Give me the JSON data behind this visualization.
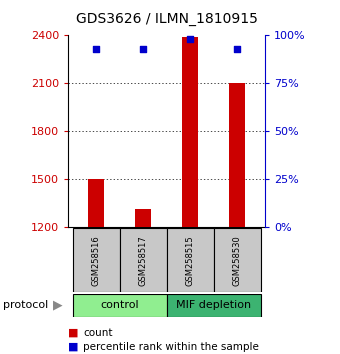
{
  "title": "GDS3626 / ILMN_1810915",
  "samples": [
    "GSM258516",
    "GSM258517",
    "GSM258515",
    "GSM258530"
  ],
  "counts": [
    1500,
    1310,
    2390,
    2100
  ],
  "percentile_ranks": [
    93,
    93,
    98,
    93
  ],
  "baseline": 1200,
  "ylim_left": [
    1200,
    2400
  ],
  "ylim_right": [
    0,
    100
  ],
  "yticks_left": [
    1200,
    1500,
    1800,
    2100,
    2400
  ],
  "yticks_right": [
    0,
    25,
    50,
    75,
    100
  ],
  "groups": [
    {
      "label": "control",
      "indices": [
        0,
        1
      ],
      "color": "#90EE90"
    },
    {
      "label": "MIF depletion",
      "indices": [
        2,
        3
      ],
      "color": "#3CB371"
    }
  ],
  "bar_color": "#CC0000",
  "scatter_color": "#0000CC",
  "bar_width": 0.35,
  "sample_box_color": "#C8C8C8",
  "title_fontsize": 10,
  "tick_label_fontsize": 8,
  "axis_label_color_left": "#CC0000",
  "axis_label_color_right": "#0000CC",
  "legend_items": [
    "count",
    "percentile rank within the sample"
  ]
}
